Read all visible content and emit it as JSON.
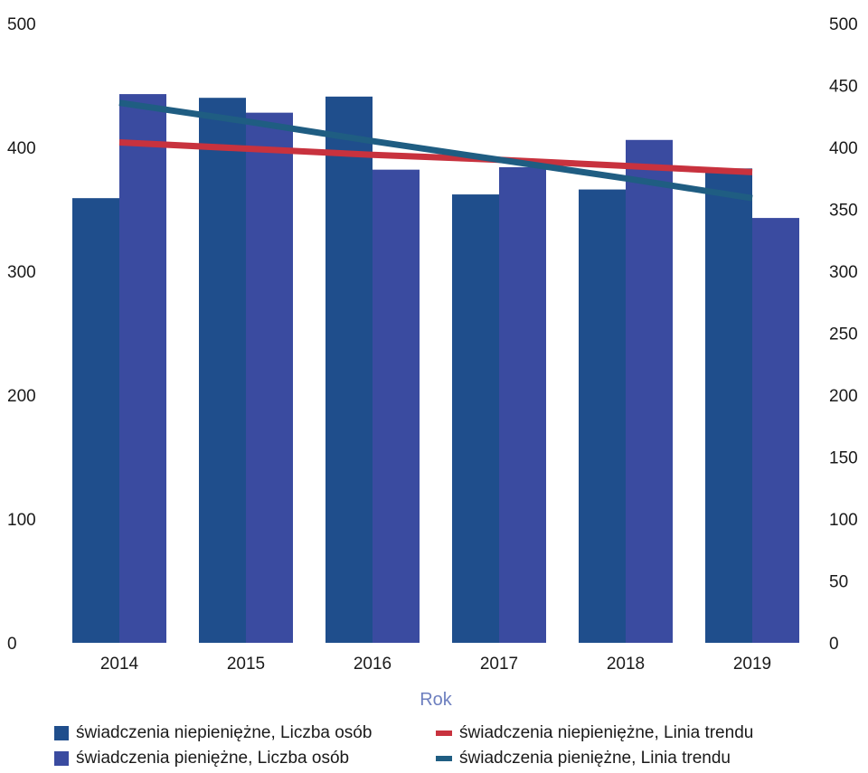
{
  "chart_data": {
    "type": "bar",
    "categories": [
      "2014",
      "2015",
      "2016",
      "2017",
      "2018",
      "2019"
    ],
    "xlabel": "Rok",
    "left_axis": {
      "min": 0,
      "max": 500,
      "ticks": [
        0,
        100,
        200,
        300,
        400,
        500
      ]
    },
    "right_axis": {
      "min": 0,
      "max": 500,
      "ticks": [
        0,
        50,
        100,
        150,
        200,
        250,
        300,
        350,
        400,
        450,
        500
      ]
    },
    "series": [
      {
        "name": "świadczenia niepieniężne, Liczba osób",
        "kind": "bar",
        "axis": "left",
        "color": "#1f4e8c",
        "values": [
          359,
          440,
          441,
          362,
          366,
          383
        ]
      },
      {
        "name": "świadczenia pieniężne, Liczba osób",
        "kind": "bar",
        "axis": "left",
        "color": "#3a4ba0",
        "values": [
          443,
          428,
          382,
          384,
          406,
          343
        ]
      },
      {
        "name": "świadczenia niepieniężne, Linia trendu",
        "kind": "line",
        "axis": "right",
        "color": "#c8323e",
        "values": [
          404,
          399,
          394,
          390,
          385,
          380
        ]
      },
      {
        "name": "świadczenia pieniężne, Linia trendu",
        "kind": "line",
        "axis": "right",
        "color": "#1f5d82",
        "values": [
          436,
          421,
          405,
          390,
          375,
          359
        ]
      }
    ],
    "grid": false,
    "legend_position": "bottom"
  }
}
